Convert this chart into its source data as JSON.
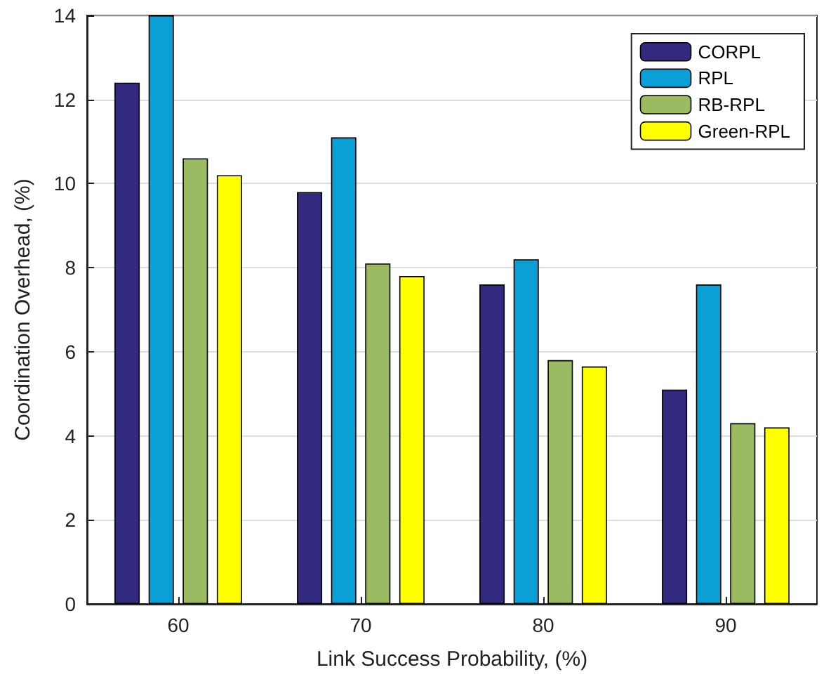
{
  "chart_data": {
    "type": "bar",
    "xlabel": "Link Success Probability, (%)",
    "ylabel": "Coordination Overhead, (%)",
    "categories": [
      "60",
      "70",
      "80",
      "90"
    ],
    "series": [
      {
        "name": "CORPL",
        "color": "#312a7e",
        "values": [
          12.4,
          9.8,
          7.6,
          5.1
        ]
      },
      {
        "name": "RPL",
        "color": "#0a9fd5",
        "values": [
          14,
          11.1,
          8.2,
          7.6
        ]
      },
      {
        "name": "RB-RPL",
        "color": "#9bbb62",
        "values": [
          10.6,
          8.1,
          5.8,
          4.3
        ]
      },
      {
        "name": "Green-RPL",
        "color": "#ffff00",
        "values": [
          10.2,
          7.8,
          5.65,
          4.2
        ]
      }
    ],
    "ylim": [
      0,
      14
    ],
    "yticks": [
      0,
      2,
      4,
      6,
      8,
      10,
      12,
      14
    ],
    "grid": "y",
    "legend": "top right"
  }
}
